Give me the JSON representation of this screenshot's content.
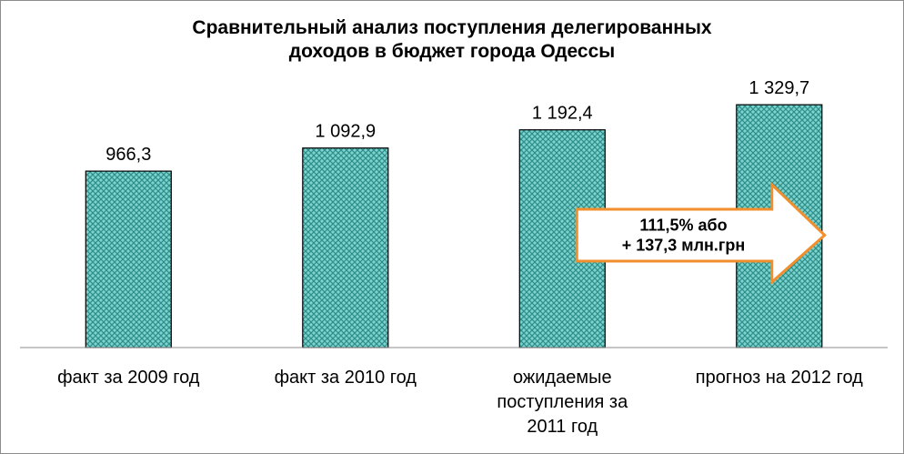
{
  "chart_data": {
    "type": "bar",
    "title_lines": [
      "Сравнительный анализ поступления делегированных",
      "доходов в бюджет города Одессы"
    ],
    "categories": [
      [
        "факт за 2009 год"
      ],
      [
        "факт за 2010 год"
      ],
      [
        "ожидаемые",
        "поступления за",
        "2011 год"
      ],
      [
        "прогноз на 2012 год"
      ]
    ],
    "values": [
      966.3,
      1092.9,
      1192.4,
      1329.7
    ],
    "value_labels": [
      "966,3",
      "1 092,9",
      "1 192,4",
      "1 329,7"
    ],
    "ylim": [
      0,
      1450
    ],
    "grid": false,
    "legend": "none",
    "annotation": {
      "lines": [
        "111,5% або",
        "+ 137,3 млн.грн"
      ],
      "shape": "right-arrow"
    }
  },
  "colors": {
    "bar_fill": "#7fd3cf",
    "bar_hatch": "#2e8f8a",
    "bar_outline": "#000000",
    "arrow_outline": "#f28e2b",
    "axis": "#8c8c8c"
  }
}
